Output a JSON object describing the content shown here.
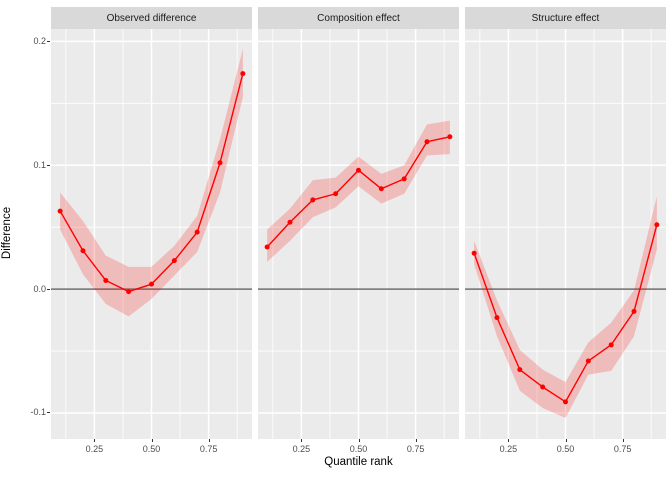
{
  "chart_data": {
    "type": "line",
    "title": "",
    "xlabel": "Quantile rank",
    "ylabel": "Difference",
    "x": [
      0.1,
      0.2,
      0.3,
      0.4,
      0.5,
      0.6,
      0.7,
      0.8,
      0.9
    ],
    "facets": [
      {
        "label": "Observed difference",
        "values": [
          0.063,
          0.031,
          0.007,
          -0.002,
          0.004,
          0.023,
          0.046,
          0.102,
          0.174
        ],
        "lower": [
          0.048,
          0.012,
          -0.012,
          -0.022,
          -0.008,
          0.011,
          0.03,
          0.078,
          0.155
        ],
        "upper": [
          0.078,
          0.055,
          0.027,
          0.018,
          0.018,
          0.035,
          0.059,
          0.121,
          0.194
        ]
      },
      {
        "label": "Composition effect",
        "values": [
          0.034,
          0.054,
          0.072,
          0.077,
          0.096,
          0.081,
          0.089,
          0.119,
          0.123
        ],
        "lower": [
          0.022,
          0.039,
          0.058,
          0.066,
          0.083,
          0.069,
          0.077,
          0.108,
          0.109
        ],
        "upper": [
          0.048,
          0.065,
          0.088,
          0.09,
          0.107,
          0.093,
          0.1,
          0.133,
          0.136
        ]
      },
      {
        "label": "Structure effect",
        "values": [
          0.029,
          -0.023,
          -0.065,
          -0.079,
          -0.091,
          -0.058,
          -0.045,
          -0.018,
          0.052
        ],
        "lower": [
          0.02,
          -0.038,
          -0.082,
          -0.096,
          -0.104,
          -0.069,
          -0.066,
          -0.038,
          0.032
        ],
        "upper": [
          0.039,
          -0.009,
          -0.049,
          -0.065,
          -0.075,
          -0.043,
          -0.027,
          -0.001,
          0.075
        ]
      }
    ],
    "x_ticks": [
      {
        "value": 0.25,
        "label": "0.25"
      },
      {
        "value": 0.5,
        "label": "0.50"
      },
      {
        "value": 0.75,
        "label": "0.75"
      }
    ],
    "y_ticks": [
      {
        "value": 0.2,
        "label": "0.2"
      },
      {
        "value": 0.1,
        "label": "0.1"
      },
      {
        "value": 0.0,
        "label": "0.0"
      },
      {
        "value": -0.1,
        "label": "-0.1"
      }
    ],
    "x_minor": [
      0.125,
      0.375,
      0.625,
      0.875
    ],
    "y_minor": [
      0.15,
      0.05,
      -0.05
    ],
    "xlim": [
      0.06,
      0.94
    ],
    "ylim": [
      -0.121,
      0.21
    ],
    "ref_line_y": 0.0,
    "legend": "none",
    "grid": "on",
    "colors": {
      "line": "#ff0000",
      "ribbon": "#ff0000",
      "ribbon_opacity": "0.20",
      "panel_bg": "#ebebeb",
      "strip_bg": "#d9d9d9",
      "grid": "#ffffff",
      "ref_line": "#808080",
      "axis_text": "#4d4d4d",
      "tick_mark": "#333333",
      "strip_text": "#1a1a1a",
      "title_text": "#000000"
    }
  }
}
